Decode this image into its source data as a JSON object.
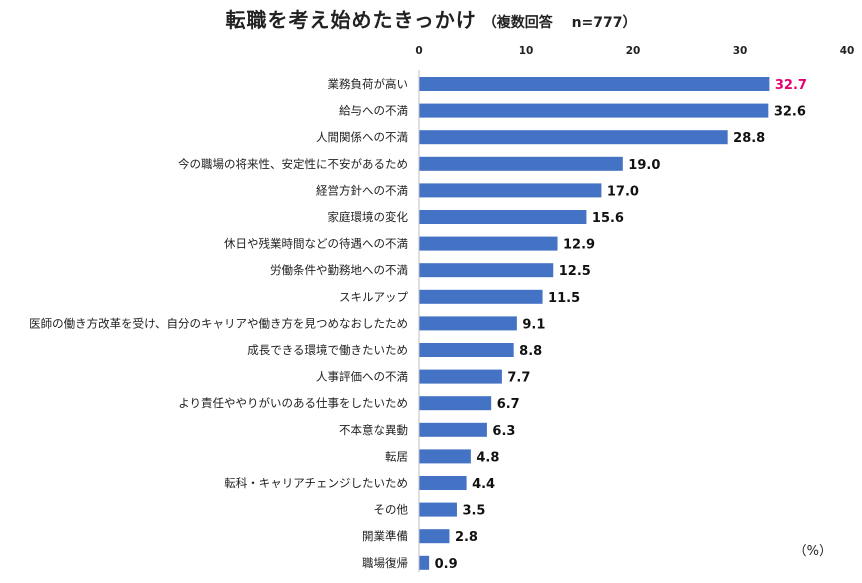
{
  "title": "転職を考え始めたきっかけ",
  "subtitle": "（複数回答　 n=777）",
  "unit": "（%）",
  "colors": {
    "bar": "#4472C4",
    "highlight_label": "#E6006E",
    "label": "#111111"
  },
  "chart_data": {
    "type": "bar",
    "orientation": "horizontal",
    "title": "転職を考え始めたきっかけ",
    "subtitle": "（複数回答　 n=777）",
    "xlim": [
      0,
      40
    ],
    "xticks": [
      0,
      10,
      20,
      30,
      40
    ],
    "axis_position": "top",
    "grid": false,
    "unit": "（%）",
    "highlight_index": 0,
    "categories": [
      "業務負荷が高い",
      "給与への不満",
      "人間関係への不満",
      "今の職場の将来性、安定性に不安があるため",
      "経営方針への不満",
      "家庭環境の変化",
      "休日や残業時間などの待遇への不満",
      "労働条件や勤務地への不満",
      "スキルアップ",
      "医師の働き方改革を受け、自分のキャリアや働き方を見つめなおしたため",
      "成長できる環境で働きたいため",
      "人事評価への不満",
      "より責任ややりがいのある仕事をしたいため",
      "不本意な異動",
      "転居",
      "転科・キャリアチェンジしたいため",
      "その他",
      "開業準備",
      "職場復帰"
    ],
    "values": [
      32.7,
      32.6,
      28.8,
      19.0,
      17.0,
      15.6,
      12.9,
      12.5,
      11.5,
      9.1,
      8.8,
      7.7,
      6.7,
      6.3,
      4.8,
      4.4,
      3.5,
      2.8,
      0.9
    ]
  }
}
